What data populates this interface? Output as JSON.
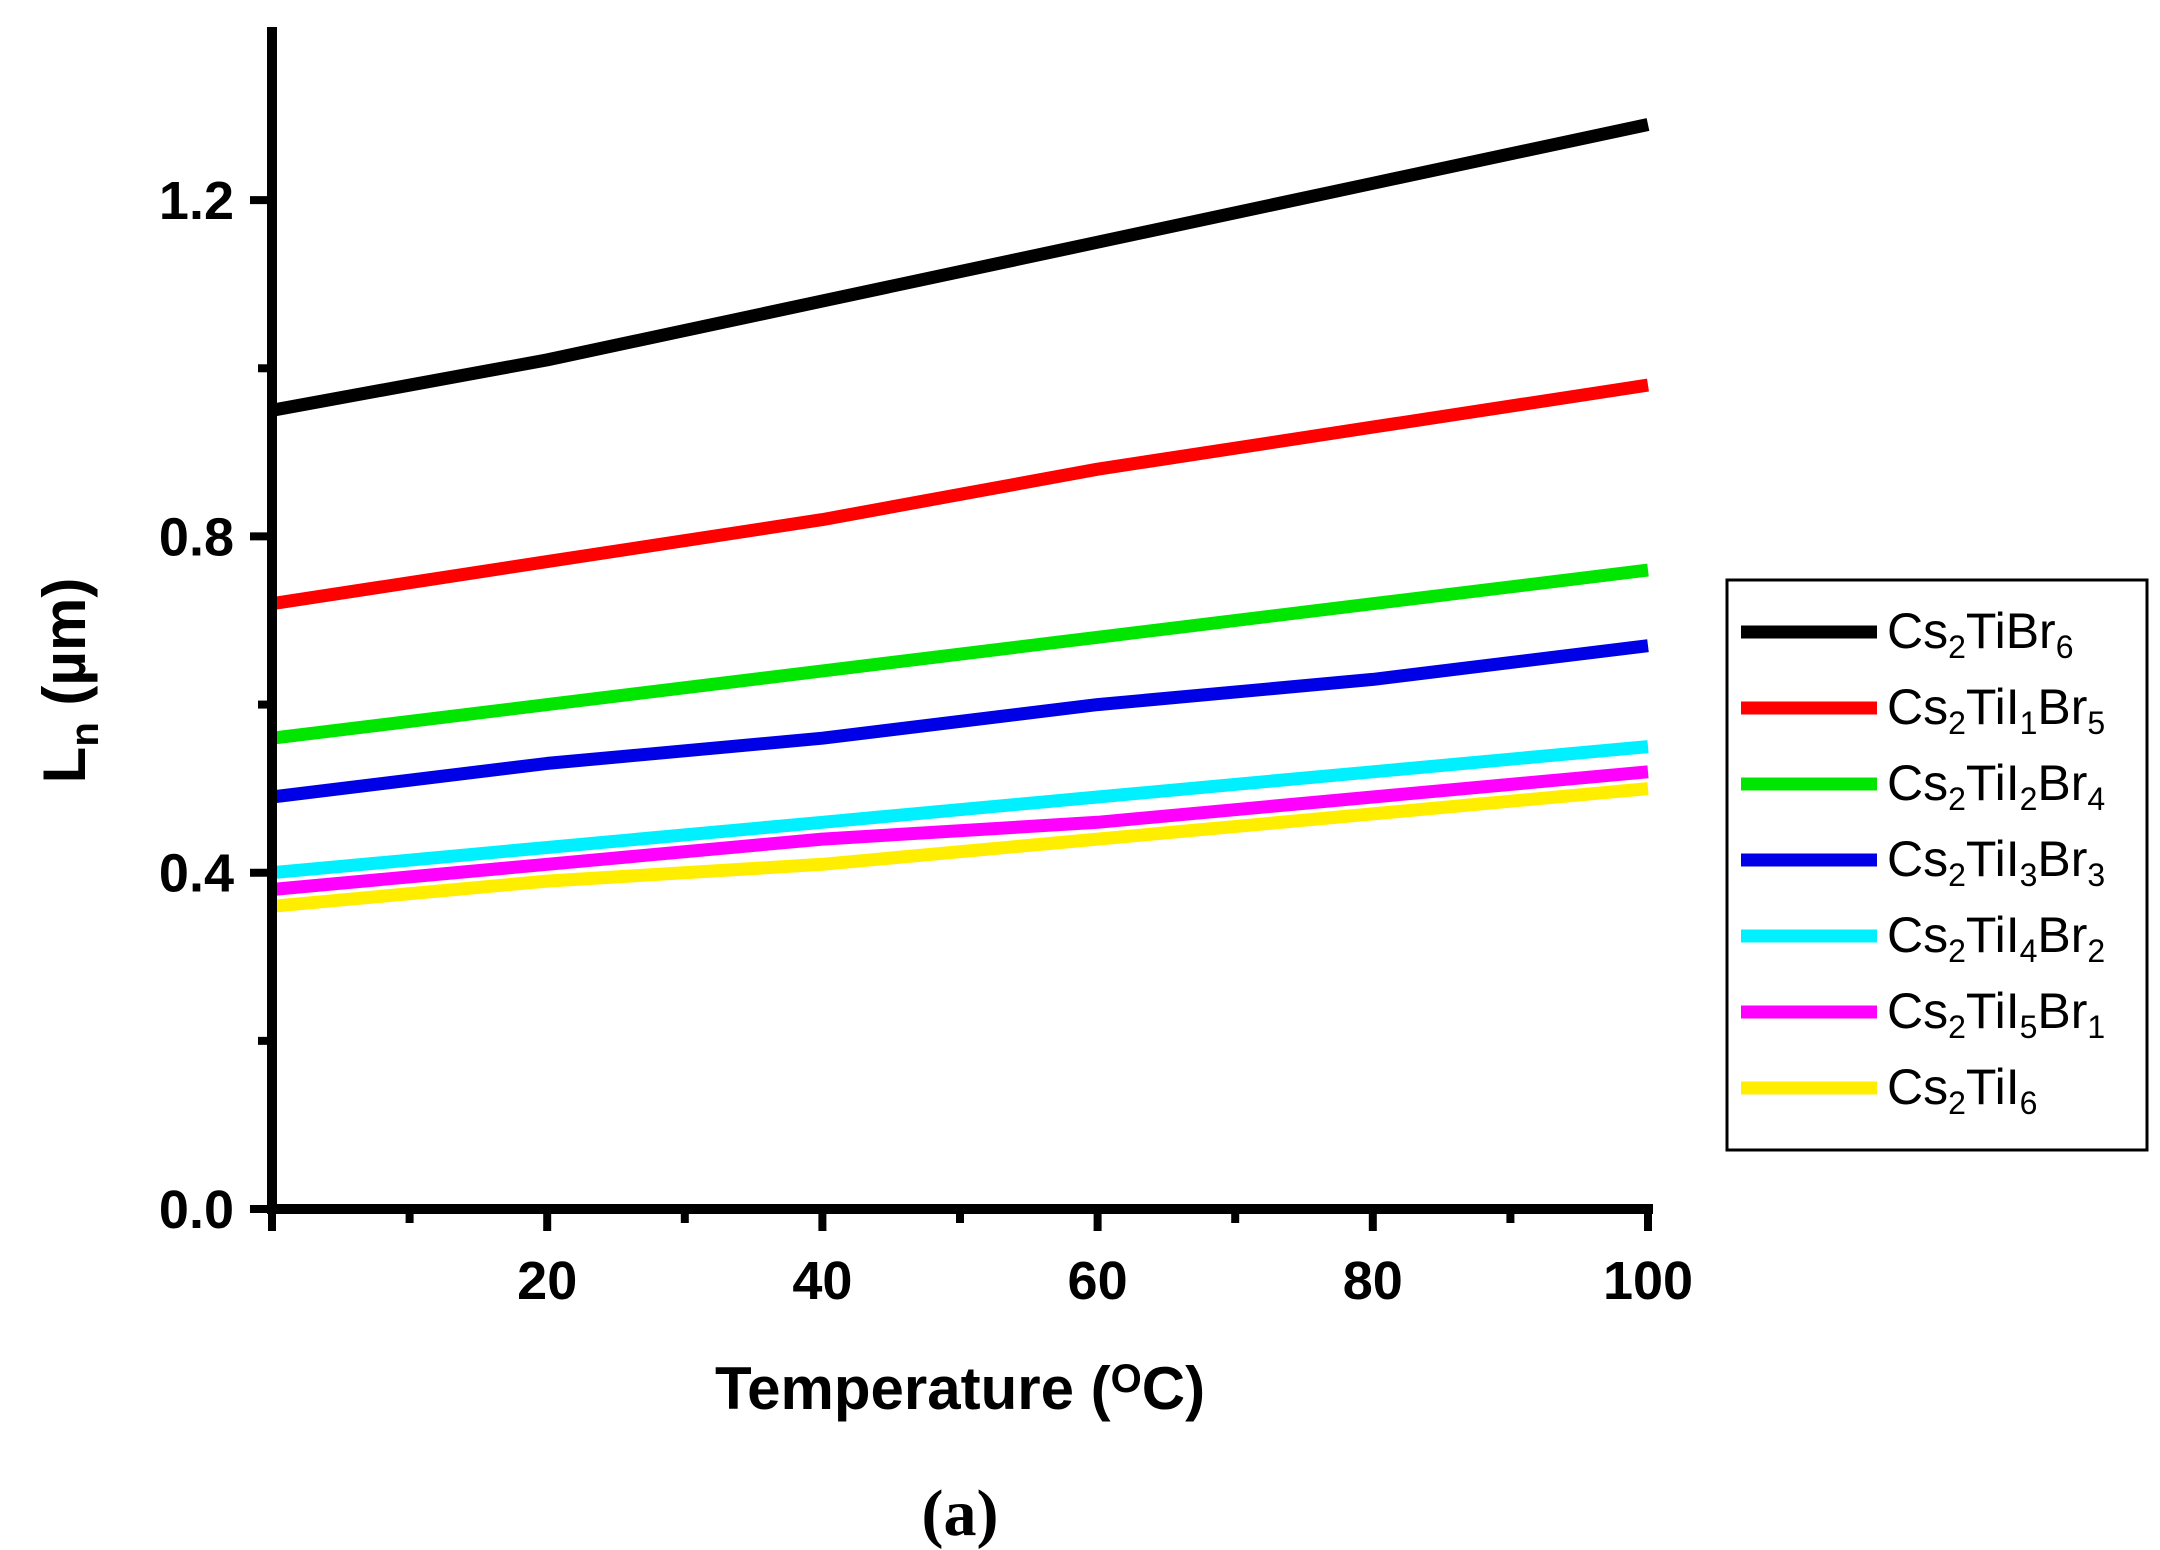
{
  "chart_data": {
    "type": "line",
    "title": "",
    "xlabel_parts": [
      "Temperature (",
      "O",
      "C)"
    ],
    "ylabel_parts": [
      "L",
      "n",
      " (µm)"
    ],
    "xlim": [
      0,
      100
    ],
    "ylim": [
      0,
      1.4
    ],
    "x_ticks": [
      {
        "value": 20,
        "label": "20"
      },
      {
        "value": 40,
        "label": "40"
      },
      {
        "value": 60,
        "label": "60"
      },
      {
        "value": 80,
        "label": "80"
      },
      {
        "value": 100,
        "label": "100"
      }
    ],
    "y_ticks": [
      {
        "value": 0.0,
        "label": "0.0"
      },
      {
        "value": 0.4,
        "label": "0.4"
      },
      {
        "value": 0.8,
        "label": "0.8"
      },
      {
        "value": 1.2,
        "label": "1.2"
      }
    ],
    "x_minor_ticks": [
      10,
      30,
      50,
      70,
      90
    ],
    "y_minor_ticks": [
      0.2,
      0.6,
      1.0
    ],
    "grid": false,
    "legend_position": "right",
    "x": [
      0,
      20,
      40,
      60,
      80,
      100
    ],
    "series": [
      {
        "name": "Cs2TiBr6",
        "label_parts": [
          [
            "Cs",
            ""
          ],
          [
            "2",
            "sub"
          ],
          [
            "TiBr",
            ""
          ],
          [
            "6",
            "sub"
          ]
        ],
        "color": "#000000",
        "values": [
          0.95,
          1.01,
          1.08,
          1.15,
          1.22,
          1.29
        ]
      },
      {
        "name": "Cs2TiI1Br5",
        "label_parts": [
          [
            "Cs",
            ""
          ],
          [
            "2",
            "sub"
          ],
          [
            "TiI",
            ""
          ],
          [
            "1",
            "sub"
          ],
          [
            "Br",
            ""
          ],
          [
            "5",
            "sub"
          ]
        ],
        "color": "#ff0000",
        "values": [
          0.72,
          0.77,
          0.82,
          0.88,
          0.93,
          0.98
        ]
      },
      {
        "name": "Cs2TiI2Br4",
        "label_parts": [
          [
            "Cs",
            ""
          ],
          [
            "2",
            "sub"
          ],
          [
            "TiI",
            ""
          ],
          [
            "2",
            "sub"
          ],
          [
            "Br",
            ""
          ],
          [
            "4",
            "sub"
          ]
        ],
        "color": "#00e600",
        "values": [
          0.56,
          0.6,
          0.64,
          0.68,
          0.72,
          0.76
        ]
      },
      {
        "name": "Cs2TiI3Br3",
        "label_parts": [
          [
            "Cs",
            ""
          ],
          [
            "2",
            "sub"
          ],
          [
            "TiI",
            ""
          ],
          [
            "3",
            "sub"
          ],
          [
            "Br",
            ""
          ],
          [
            "3",
            "sub"
          ]
        ],
        "color": "#0000e6",
        "values": [
          0.49,
          0.53,
          0.56,
          0.6,
          0.63,
          0.67
        ]
      },
      {
        "name": "Cs2TiI4Br2",
        "label_parts": [
          [
            "Cs",
            ""
          ],
          [
            "2",
            "sub"
          ],
          [
            "TiI",
            ""
          ],
          [
            "4",
            "sub"
          ],
          [
            "Br",
            ""
          ],
          [
            "2",
            "sub"
          ]
        ],
        "color": "#00f0ff",
        "values": [
          0.4,
          0.43,
          0.46,
          0.49,
          0.52,
          0.55
        ]
      },
      {
        "name": "Cs2TiI5Br1",
        "label_parts": [
          [
            "Cs",
            ""
          ],
          [
            "2",
            "sub"
          ],
          [
            "TiI",
            ""
          ],
          [
            "5",
            "sub"
          ],
          [
            "Br",
            ""
          ],
          [
            "1",
            "sub"
          ]
        ],
        "color": "#ff00ff",
        "values": [
          0.38,
          0.41,
          0.44,
          0.46,
          0.49,
          0.52
        ]
      },
      {
        "name": "Cs2TiI6",
        "label_parts": [
          [
            "Cs",
            ""
          ],
          [
            "2",
            "sub"
          ],
          [
            "TiI",
            ""
          ],
          [
            "6",
            "sub"
          ]
        ],
        "color": "#ffee00",
        "values": [
          0.36,
          0.39,
          0.41,
          0.44,
          0.47,
          0.5
        ]
      }
    ],
    "caption": "(a)"
  }
}
